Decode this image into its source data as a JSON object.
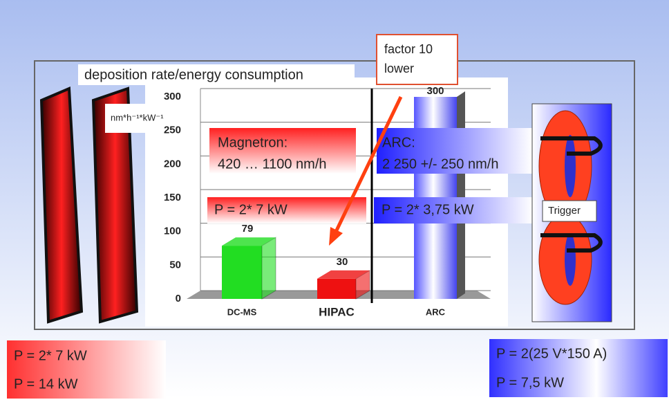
{
  "chart_data": {
    "type": "bar",
    "title": "deposition rate/energy consumption",
    "y_label": "nm*h⁻¹*kW⁻¹",
    "categories": [
      "DC-MS",
      "HIPAC",
      "ARC"
    ],
    "values": [
      79,
      30,
      300
    ],
    "colors": [
      "#22dd22",
      "#ee1111",
      "#7070ff"
    ],
    "ylim": [
      0,
      300
    ],
    "yticks": [
      0,
      50,
      100,
      150,
      200,
      250,
      300
    ],
    "grid": true
  },
  "annotations": {
    "factor": [
      "factor 10",
      "lower"
    ],
    "magnetron": [
      "Magnetron:",
      "420 … 1100 nm/h"
    ],
    "arc": [
      "ARC:",
      "2 250 +/- 250 nm/h"
    ],
    "magnetron_power": "P = 2* 7 kW",
    "arc_power": "P = 2* 3,75 kW",
    "trigger": "Trigger"
  },
  "footer": {
    "left": [
      "P = 2* 7 kW",
      "P = 14 kW"
    ],
    "right": [
      "P = 2(25 V*150 A)",
      "P = 7,5 kW"
    ]
  }
}
